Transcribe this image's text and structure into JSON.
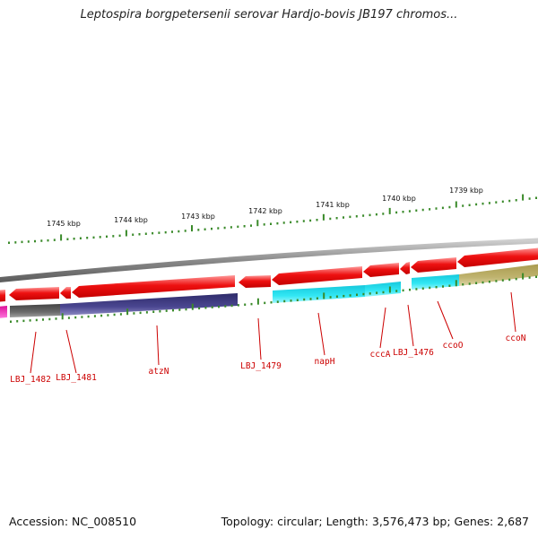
{
  "title": "Leptospira borgpetersenii serovar Hardjo-bovis JB197 chromos...",
  "footer": {
    "accession": "Accession: NC_008510",
    "summary": "Topology: circular; Length: 3,576,473 bp; Genes: 2,687"
  },
  "ruler": {
    "unit": "kbp",
    "ticks": [
      "1745 kbp",
      "1744 kbp",
      "1743 kbp",
      "1742 kbp",
      "1741 kbp",
      "1740 kbp",
      "1739 kbp"
    ]
  },
  "genes": [
    {
      "label": "LBJ_1482"
    },
    {
      "label": "LBJ_1481"
    },
    {
      "label": "atzN"
    },
    {
      "label": "LBJ_1479"
    },
    {
      "label": "napH"
    },
    {
      "label": "cccA"
    },
    {
      "label": "LBJ_1476"
    },
    {
      "label": "ccoO"
    },
    {
      "label": "ccoN"
    }
  ],
  "colors": {
    "forward_gene": "#ee1111",
    "backbone": "#888888",
    "reverse_dark": "#5a5a5a",
    "reverse_navy": "#3d3a7a",
    "reverse_cyan": "#22ddee",
    "reverse_olive": "#b5a860",
    "reverse_magenta": "#ee22bb",
    "tick": "#3a8a2a",
    "label": "#cc0000"
  }
}
